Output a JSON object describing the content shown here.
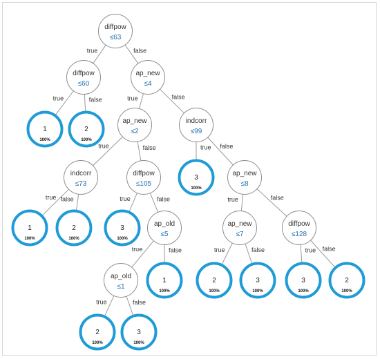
{
  "tree": {
    "colors": {
      "leaf_ring": "#1f9bd7",
      "threshold_text": "#1f6fb2",
      "edge": "#9a9a9a"
    },
    "nodes": [
      {
        "id": "n0",
        "kind": "split",
        "feature": "diffpow",
        "threshold": "≤63"
      },
      {
        "id": "n1",
        "kind": "split",
        "feature": "diffpow",
        "threshold": "≤60"
      },
      {
        "id": "n2",
        "kind": "split",
        "feature": "ap_new",
        "threshold": "≤4"
      },
      {
        "id": "l1",
        "kind": "leaf",
        "value": "1",
        "pct": "100%"
      },
      {
        "id": "l2",
        "kind": "leaf",
        "value": "2",
        "pct": "100%"
      },
      {
        "id": "n3",
        "kind": "split",
        "feature": "ap_new",
        "threshold": "≤2"
      },
      {
        "id": "n4",
        "kind": "split",
        "feature": "indcorr",
        "threshold": "≤99"
      },
      {
        "id": "n5",
        "kind": "split",
        "feature": "indcorr",
        "threshold": "≤73"
      },
      {
        "id": "n6",
        "kind": "split",
        "feature": "diffpow",
        "threshold": "≤105"
      },
      {
        "id": "l3",
        "kind": "leaf",
        "value": "3",
        "pct": "100%"
      },
      {
        "id": "n7",
        "kind": "split",
        "feature": "ap_new",
        "threshold": "≤8"
      },
      {
        "id": "l4",
        "kind": "leaf",
        "value": "1",
        "pct": "100%"
      },
      {
        "id": "l5",
        "kind": "leaf",
        "value": "2",
        "pct": "100%"
      },
      {
        "id": "l6",
        "kind": "leaf",
        "value": "3",
        "pct": "100%"
      },
      {
        "id": "n8",
        "kind": "split",
        "feature": "ap_old",
        "threshold": "≤5"
      },
      {
        "id": "n9",
        "kind": "split",
        "feature": "ap_new",
        "threshold": "≤7"
      },
      {
        "id": "n10",
        "kind": "split",
        "feature": "diffpow",
        "threshold": "≤128"
      },
      {
        "id": "n11",
        "kind": "split",
        "feature": "ap_old",
        "threshold": "≤1"
      },
      {
        "id": "l7",
        "kind": "leaf",
        "value": "1",
        "pct": "100%"
      },
      {
        "id": "l8",
        "kind": "leaf",
        "value": "2",
        "pct": "100%"
      },
      {
        "id": "l9",
        "kind": "leaf",
        "value": "3",
        "pct": "100%"
      },
      {
        "id": "l10",
        "kind": "leaf",
        "value": "3",
        "pct": "100%"
      },
      {
        "id": "l11",
        "kind": "leaf",
        "value": "2",
        "pct": "100%"
      },
      {
        "id": "l12",
        "kind": "leaf",
        "value": "2",
        "pct": "100%"
      },
      {
        "id": "l13",
        "kind": "leaf",
        "value": "3",
        "pct": "100%"
      }
    ],
    "edges": [
      {
        "from": "n0",
        "to": "n1",
        "label": "true"
      },
      {
        "from": "n0",
        "to": "n2",
        "label": "false"
      },
      {
        "from": "n1",
        "to": "l1",
        "label": "true"
      },
      {
        "from": "n1",
        "to": "l2",
        "label": "false"
      },
      {
        "from": "n2",
        "to": "n3",
        "label": "true"
      },
      {
        "from": "n2",
        "to": "n4",
        "label": "false"
      },
      {
        "from": "n3",
        "to": "n5",
        "label": "true"
      },
      {
        "from": "n3",
        "to": "n6",
        "label": "false"
      },
      {
        "from": "n4",
        "to": "l3",
        "label": "true"
      },
      {
        "from": "n4",
        "to": "n7",
        "label": "false"
      },
      {
        "from": "n5",
        "to": "l4",
        "label": "true"
      },
      {
        "from": "n5",
        "to": "l5",
        "label": "false"
      },
      {
        "from": "n6",
        "to": "l6",
        "label": "true"
      },
      {
        "from": "n6",
        "to": "n8",
        "label": "false"
      },
      {
        "from": "n7",
        "to": "n9",
        "label": "true"
      },
      {
        "from": "n7",
        "to": "n10",
        "label": "false"
      },
      {
        "from": "n8",
        "to": "n11",
        "label": "true"
      },
      {
        "from": "n8",
        "to": "l7",
        "label": "false"
      },
      {
        "from": "n9",
        "to": "l8",
        "label": "true"
      },
      {
        "from": "n9",
        "to": "l9",
        "label": "false"
      },
      {
        "from": "n10",
        "to": "l10",
        "label": "true"
      },
      {
        "from": "n10",
        "to": "l11",
        "label": "false"
      },
      {
        "from": "n11",
        "to": "l12",
        "label": "true"
      },
      {
        "from": "n11",
        "to": "l13",
        "label": "false"
      }
    ]
  }
}
